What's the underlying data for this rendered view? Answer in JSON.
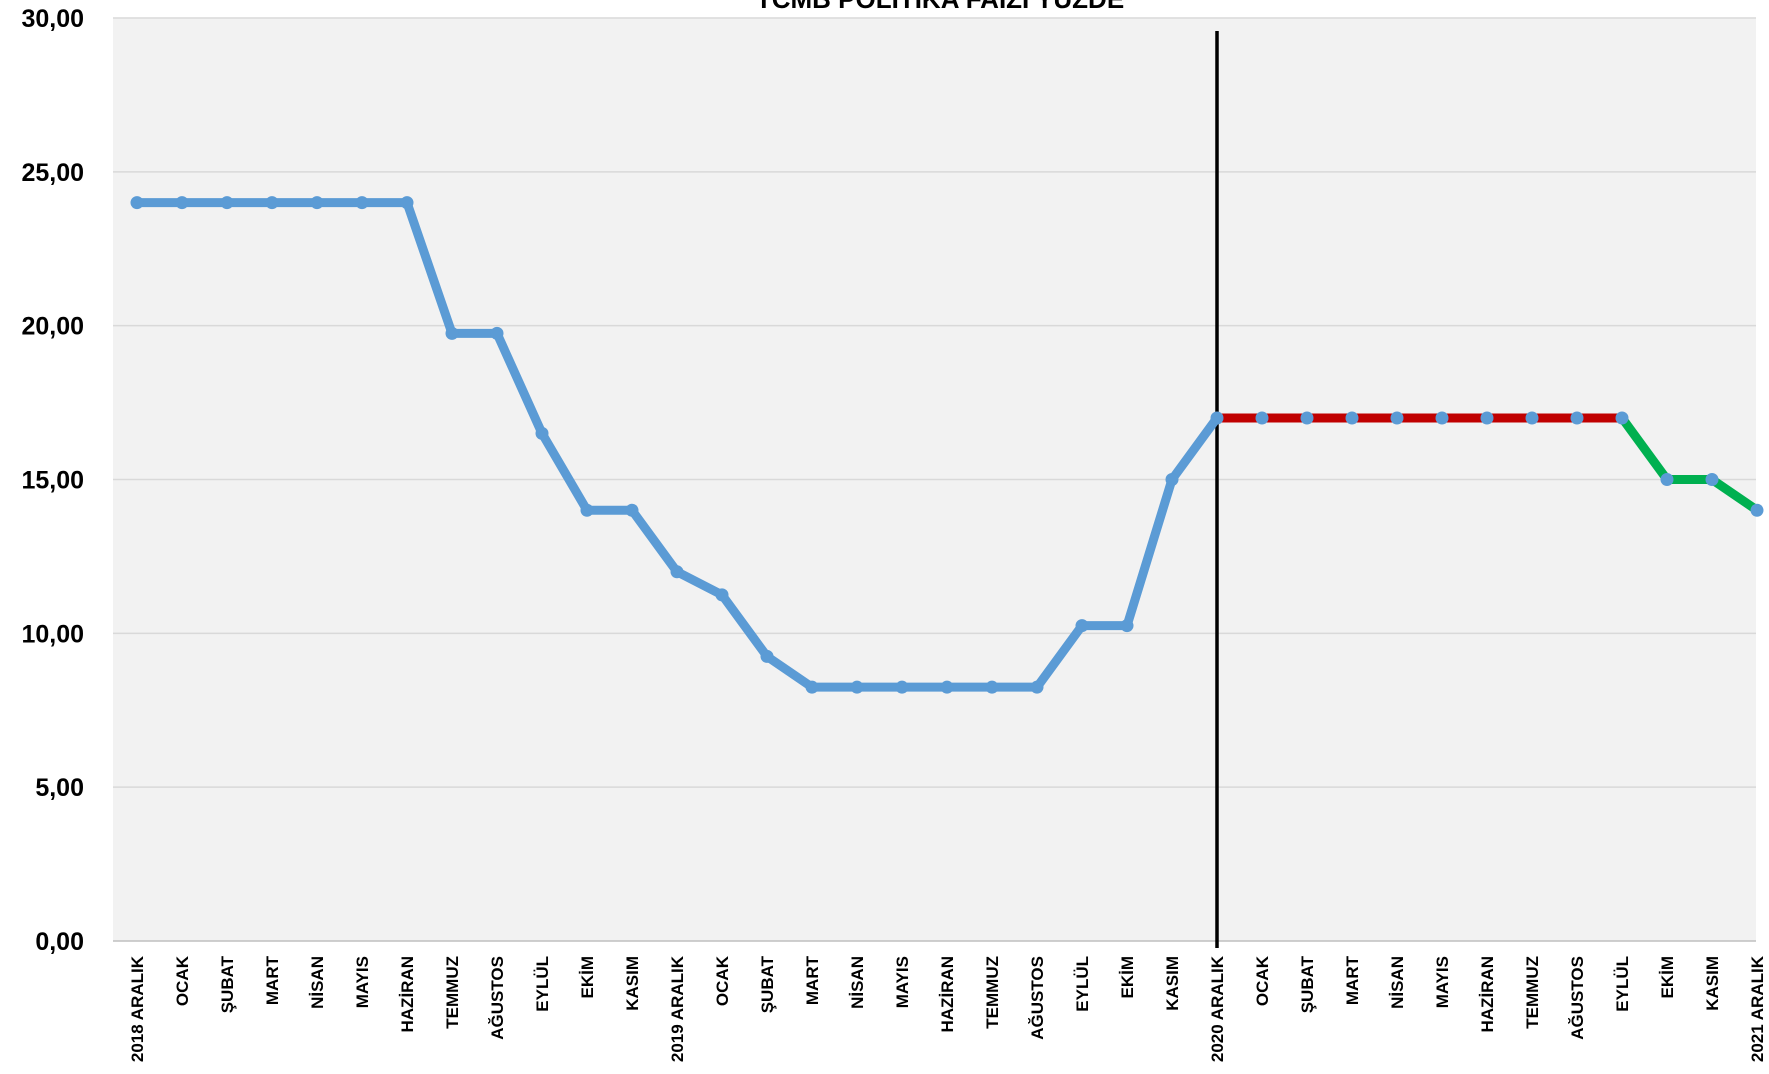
{
  "chart_data": {
    "type": "line",
    "title": "TCMB POLİTİKA FAİZİ YÜZDE",
    "xlabel": "",
    "ylabel": "",
    "ylim": [
      0,
      30
    ],
    "yticks": [
      "0,00",
      "5,00",
      "10,00",
      "15,00",
      "20,00",
      "25,00",
      "30,00"
    ],
    "grid": true,
    "legend": "none",
    "categories": [
      "2018 ARALIK",
      "OCAK",
      "ŞUBAT",
      "MART",
      "NİSAN",
      "MAYIS",
      "HAZİRAN",
      "TEMMUZ",
      "AĞUSTOS",
      "EYLÜL",
      "EKİM",
      "KASIM",
      "2019 ARALIK",
      "OCAK",
      "ŞUBAT",
      "MART",
      "NİSAN",
      "MAYIS",
      "HAZİRAN",
      "TEMMUZ",
      "AĞUSTOS",
      "EYLÜL",
      "EKİM",
      "KASIM",
      "2020 ARALIK",
      "OCAK",
      "ŞUBAT",
      "MART",
      "NİSAN",
      "MAYIS",
      "HAZİRAN",
      "TEMMUZ",
      "AĞUSTOS",
      "EYLÜL",
      "EKİM",
      "KASIM",
      "2021 ARALIK"
    ],
    "values": [
      24,
      24,
      24,
      24,
      24,
      24,
      24,
      19.75,
      19.75,
      16.5,
      14,
      14,
      12,
      11.25,
      9.25,
      8.25,
      8.25,
      8.25,
      8.25,
      8.25,
      8.25,
      10.25,
      10.25,
      15,
      17,
      17,
      17,
      17,
      17,
      17,
      17,
      17,
      17,
      17,
      15,
      15,
      14
    ],
    "segments": [
      {
        "from": 0,
        "to": 24,
        "color": "#5B9BD5"
      },
      {
        "from": 24,
        "to": 33,
        "color": "#C00000"
      },
      {
        "from": 33,
        "to": 36,
        "color": "#00B050"
      }
    ],
    "marker_color": "#5B9BD5",
    "divider_at": "2020 ARALIK",
    "divider_color": "#000000",
    "plot_bg": "#F2F2F2",
    "grid_color": "#D9D9D9"
  }
}
